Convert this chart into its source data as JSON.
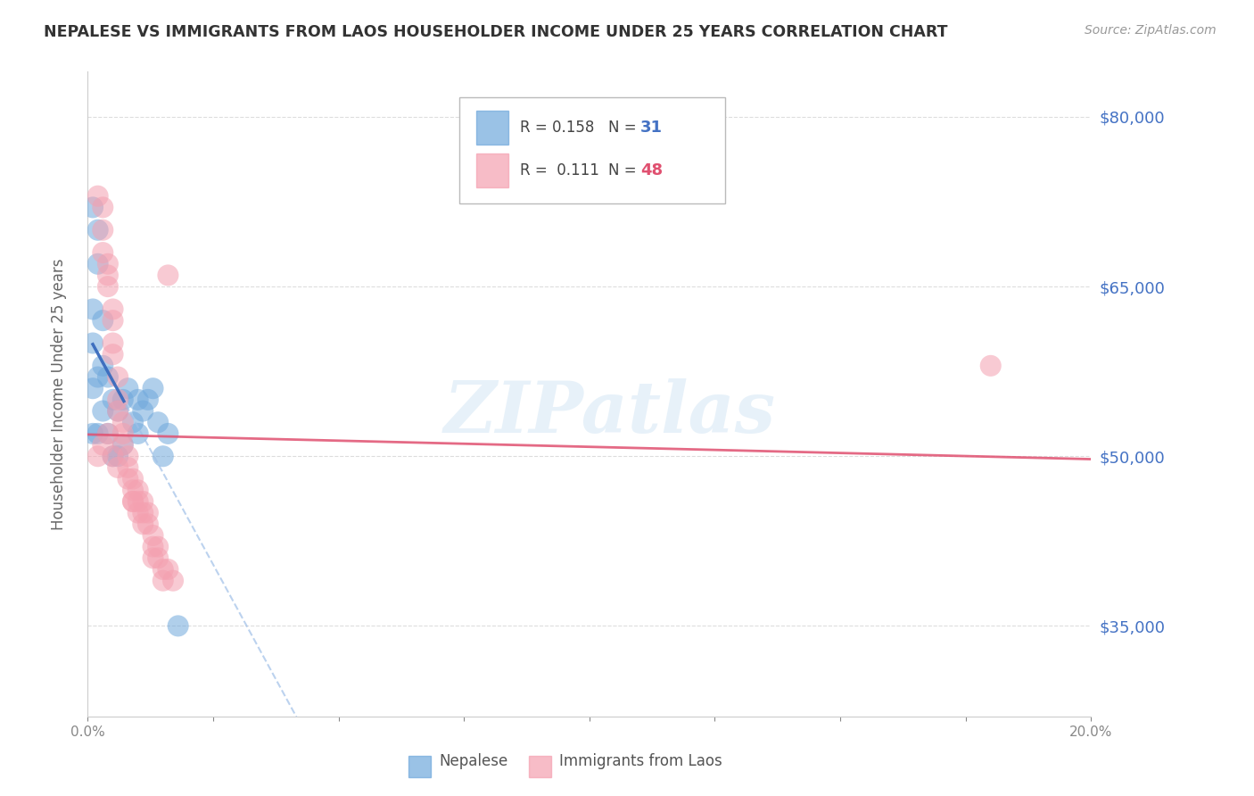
{
  "title": "NEPALESE VS IMMIGRANTS FROM LAOS HOUSEHOLDER INCOME UNDER 25 YEARS CORRELATION CHART",
  "source": "Source: ZipAtlas.com",
  "ylabel": "Householder Income Under 25 years",
  "y_ticks": [
    35000,
    50000,
    65000,
    80000
  ],
  "y_tick_labels": [
    "$35,000",
    "$50,000",
    "$65,000",
    "$80,000"
  ],
  "x_min": 0.0,
  "x_max": 0.2,
  "y_min": 27000,
  "y_max": 84000,
  "nepalese_color": "#6fa8dc",
  "laos_color": "#f4a0b0",
  "nepalese_R": 0.158,
  "nepalese_N": 31,
  "laos_R": 0.111,
  "laos_N": 48,
  "nepalese_x": [
    0.001,
    0.001,
    0.001,
    0.001,
    0.002,
    0.002,
    0.002,
    0.002,
    0.003,
    0.003,
    0.003,
    0.004,
    0.004,
    0.005,
    0.005,
    0.006,
    0.006,
    0.007,
    0.007,
    0.008,
    0.009,
    0.01,
    0.01,
    0.011,
    0.012,
    0.013,
    0.014,
    0.015,
    0.016,
    0.018,
    0.001
  ],
  "nepalese_y": [
    63000,
    60000,
    56000,
    52000,
    70000,
    67000,
    57000,
    52000,
    62000,
    58000,
    54000,
    57000,
    52000,
    55000,
    50000,
    54000,
    50000,
    55000,
    51000,
    56000,
    53000,
    55000,
    52000,
    54000,
    55000,
    56000,
    53000,
    50000,
    52000,
    35000,
    72000
  ],
  "laos_x": [
    0.002,
    0.003,
    0.003,
    0.003,
    0.004,
    0.004,
    0.004,
    0.005,
    0.005,
    0.005,
    0.005,
    0.006,
    0.006,
    0.006,
    0.007,
    0.007,
    0.007,
    0.008,
    0.008,
    0.008,
    0.009,
    0.009,
    0.009,
    0.01,
    0.01,
    0.01,
    0.011,
    0.011,
    0.011,
    0.012,
    0.012,
    0.013,
    0.013,
    0.013,
    0.014,
    0.014,
    0.015,
    0.015,
    0.016,
    0.017,
    0.002,
    0.003,
    0.004,
    0.005,
    0.006,
    0.009,
    0.016,
    0.18
  ],
  "laos_y": [
    73000,
    72000,
    70000,
    68000,
    67000,
    66000,
    65000,
    63000,
    62000,
    60000,
    59000,
    57000,
    55000,
    54000,
    53000,
    52000,
    51000,
    50000,
    49000,
    48000,
    48000,
    47000,
    46000,
    47000,
    46000,
    45000,
    46000,
    45000,
    44000,
    45000,
    44000,
    43000,
    42000,
    41000,
    42000,
    41000,
    40000,
    39000,
    40000,
    39000,
    50000,
    51000,
    52000,
    50000,
    49000,
    46000,
    66000,
    58000
  ],
  "watermark": "ZIPatlas",
  "background_color": "#ffffff",
  "grid_color": "#dddddd",
  "legend_R_color": "#333333",
  "legend_N_blue": "#4472c4",
  "legend_N_pink": "#e05070"
}
